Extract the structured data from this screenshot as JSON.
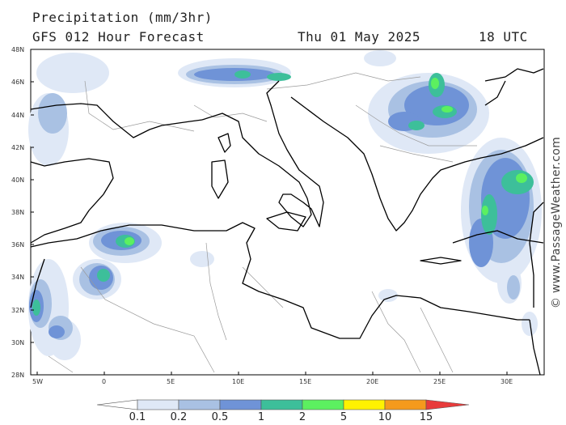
{
  "header": {
    "title": "Precipitation (mm/3hr)",
    "model": "GFS 012 Hour Forecast",
    "date": "Thu 01 May 2025",
    "time": "18 UTC"
  },
  "credit": "© www.PassageWeather.com",
  "map": {
    "lon_range": [
      -5,
      33
    ],
    "lat_range": [
      28,
      48
    ],
    "lat_labels": [
      "48N",
      "46N",
      "44N",
      "42N",
      "40N",
      "38N",
      "36N",
      "34N",
      "32N",
      "30N",
      "28N"
    ],
    "lon_labels": [
      "5W",
      "0",
      "5E",
      "10E",
      "15E",
      "20E",
      "25E",
      "30E"
    ]
  },
  "legend": {
    "labels": [
      "0.1",
      "0.2",
      "0.5",
      "1",
      "2",
      "5",
      "10",
      "15"
    ],
    "colors": [
      "#ffffff",
      "#dfe8f6",
      "#a9c1e3",
      "#6f93d7",
      "#3dbf9a",
      "#5cf060",
      "#fff200",
      "#f59a1c",
      "#e83b3b"
    ]
  },
  "colors": {
    "coast": "#000000",
    "border": "#9a9a9a",
    "light": "#dfe8f6",
    "blue1": "#a9c1e3",
    "blue2": "#6f93d7",
    "teal": "#3dbf9a",
    "green": "#5cf060"
  }
}
